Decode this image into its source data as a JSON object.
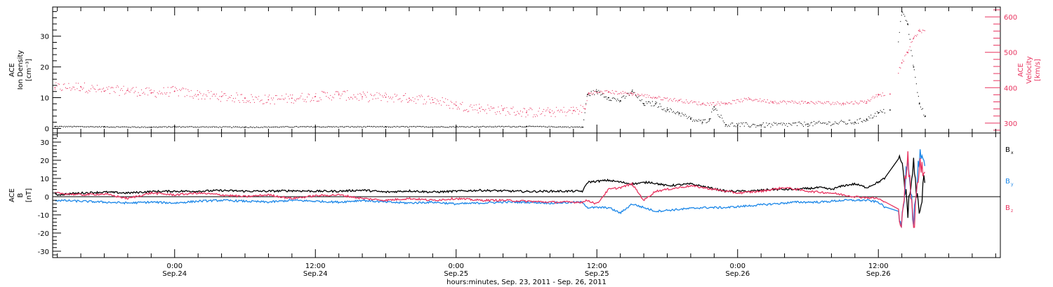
{
  "colors": {
    "black": "#000000",
    "pink": "#e8335f",
    "blue": "#1a86e8"
  },
  "x_axis": {
    "title": "hours:minutes, Sep. 23, 2011 - Sep. 26, 2011",
    "ticks": [
      {
        "hour": 24,
        "time": "0:00",
        "date": "Sep.24"
      },
      {
        "hour": 36,
        "time": "12:00",
        "date": "Sep.24"
      },
      {
        "hour": 48,
        "time": "0:00",
        "date": "Sep.25"
      },
      {
        "hour": 60,
        "time": "12:00",
        "date": "Sep.25"
      },
      {
        "hour": 72,
        "time": "0:00",
        "date": "Sep.26"
      },
      {
        "hour": 84,
        "time": "12:00",
        "date": "Sep.26"
      }
    ]
  },
  "chart_data": [
    {
      "type": "scatter",
      "panel": "top",
      "xlim": [
        13.6,
        94.4
      ],
      "ylabel_left": [
        "ACE",
        "Ion Density",
        "[cm⁻³]"
      ],
      "ylim_left": [
        -1.5,
        39.5
      ],
      "yticks_left": [
        0,
        10,
        20,
        30
      ],
      "ylabel_right": [
        "ACE",
        "Velocity",
        "[km/s]"
      ],
      "ylim_right": [
        272,
        628
      ],
      "yticks_right": [
        300,
        400,
        500,
        600
      ],
      "series": [
        {
          "axis": "left",
          "color": "#000000",
          "points": [
            [
              13.8,
              0.6
            ],
            [
              18,
              0.5
            ],
            [
              22,
              0.4
            ],
            [
              24,
              0.5
            ],
            [
              30,
              0.4
            ],
            [
              36,
              0.5
            ],
            [
              42,
              0.5
            ],
            [
              48,
              0.5
            ],
            [
              54,
              0.6
            ],
            [
              58.8,
              0.4
            ],
            [
              59.2,
              11
            ],
            [
              60,
              12
            ],
            [
              61,
              10
            ],
            [
              62,
              9
            ],
            [
              63,
              12
            ],
            [
              64,
              8
            ],
            [
              65,
              8
            ],
            [
              66,
              6
            ],
            [
              67,
              5
            ],
            [
              68,
              3
            ],
            [
              69,
              2
            ],
            [
              69.6,
              3
            ],
            [
              70.0,
              7
            ],
            [
              71,
              1.2
            ],
            [
              74,
              1.0
            ],
            [
              78,
              1.4
            ],
            [
              82,
              2
            ],
            [
              83,
              3
            ],
            [
              84,
              5
            ],
            [
              85,
              6
            ],
            [
              86,
              38
            ],
            [
              86.5,
              34
            ],
            [
              87,
              20
            ],
            [
              87.5,
              8
            ],
            [
              88,
              4
            ]
          ]
        },
        {
          "axis": "right",
          "color": "#e8335f",
          "points": [
            [
              13.8,
              400
            ],
            [
              16,
              403
            ],
            [
              18,
              390
            ],
            [
              20,
              393
            ],
            [
              22,
              385
            ],
            [
              24,
              390
            ],
            [
              26,
              380
            ],
            [
              28,
              375
            ],
            [
              30,
              370
            ],
            [
              32,
              366
            ],
            [
              34,
              370
            ],
            [
              36,
              375
            ],
            [
              38,
              380
            ],
            [
              40,
              374
            ],
            [
              42,
              373
            ],
            [
              44,
              370
            ],
            [
              46,
              366
            ],
            [
              48,
              350
            ],
            [
              50,
              342
            ],
            [
              52,
              336
            ],
            [
              54,
              330
            ],
            [
              56,
              330
            ],
            [
              58,
              335
            ],
            [
              59.0,
              340
            ],
            [
              59.3,
              385
            ],
            [
              61,
              388
            ],
            [
              63,
              383
            ],
            [
              65,
              372
            ],
            [
              67,
              364
            ],
            [
              69,
              354
            ],
            [
              71,
              356
            ],
            [
              73,
              368
            ],
            [
              75,
              360
            ],
            [
              78,
              358
            ],
            [
              81,
              356
            ],
            [
              83,
              360
            ],
            [
              84,
              381
            ],
            [
              85,
              382
            ],
            [
              86,
              470
            ],
            [
              86.5,
              500
            ],
            [
              87,
              540
            ],
            [
              87.5,
              560
            ]
          ]
        }
      ]
    },
    {
      "type": "line",
      "panel": "bottom",
      "xlim": [
        13.6,
        94.4
      ],
      "ylabel": [
        "ACE",
        "B",
        "[nT]"
      ],
      "ylim": [
        -33.5,
        35
      ],
      "yticks": [
        -30,
        -20,
        -10,
        0,
        10,
        20,
        30
      ],
      "zero_line": true,
      "series": [
        {
          "name": "Bx",
          "color": "#000000",
          "points": [
            [
              13.8,
              1
            ],
            [
              16,
              2
            ],
            [
              18,
              2.5
            ],
            [
              20,
              2
            ],
            [
              22,
              2.8
            ],
            [
              24,
              3
            ],
            [
              26,
              3
            ],
            [
              28,
              3.4
            ],
            [
              30,
              3
            ],
            [
              32,
              3
            ],
            [
              34,
              3.3
            ],
            [
              36,
              3
            ],
            [
              38,
              3
            ],
            [
              40,
              3.6
            ],
            [
              42,
              2.5
            ],
            [
              44,
              3.2
            ],
            [
              46,
              2.5
            ],
            [
              48,
              3
            ],
            [
              50,
              3.5
            ],
            [
              52,
              3.2
            ],
            [
              54,
              2.8
            ],
            [
              56,
              3
            ],
            [
              58.8,
              3
            ],
            [
              59.2,
              8
            ],
            [
              61,
              9
            ],
            [
              63,
              7
            ],
            [
              64.5,
              8
            ],
            [
              66,
              6
            ],
            [
              68,
              7
            ],
            [
              69.5,
              5
            ],
            [
              71,
              3
            ],
            [
              73,
              3
            ],
            [
              75,
              4
            ],
            [
              77,
              4
            ],
            [
              79,
              5
            ],
            [
              80,
              4
            ],
            [
              81,
              6
            ],
            [
              82,
              7
            ],
            [
              83,
              5
            ],
            [
              84,
              8
            ],
            [
              85,
              12
            ],
            [
              86,
              20
            ],
            [
              86.5,
              -8
            ],
            [
              87,
              18
            ],
            [
              87.5,
              -12
            ],
            [
              88,
              14
            ]
          ]
        },
        {
          "name": "By",
          "color": "#1a86e8",
          "points": [
            [
              13.8,
              -2
            ],
            [
              16,
              -2.5
            ],
            [
              18,
              -3
            ],
            [
              20,
              -3.5
            ],
            [
              22,
              -3
            ],
            [
              24,
              -3.5
            ],
            [
              26,
              -2.5
            ],
            [
              28,
              -2
            ],
            [
              30,
              -2.5
            ],
            [
              32,
              -3
            ],
            [
              34,
              -2
            ],
            [
              36,
              -2.5
            ],
            [
              38,
              -3
            ],
            [
              40,
              -2
            ],
            [
              42,
              -3
            ],
            [
              44,
              -3.5
            ],
            [
              46,
              -3
            ],
            [
              48,
              -4
            ],
            [
              50,
              -3.5
            ],
            [
              52,
              -3
            ],
            [
              54,
              -3
            ],
            [
              56,
              -3.5
            ],
            [
              58.8,
              -3
            ],
            [
              59.2,
              -6
            ],
            [
              61,
              -6
            ],
            [
              62,
              -9
            ],
            [
              63,
              -4
            ],
            [
              65,
              -8
            ],
            [
              67,
              -7
            ],
            [
              69,
              -6
            ],
            [
              71,
              -6
            ],
            [
              73,
              -5
            ],
            [
              75,
              -4
            ],
            [
              77,
              -3
            ],
            [
              79,
              -3
            ],
            [
              81,
              -2
            ],
            [
              83,
              -2
            ],
            [
              84,
              -3
            ],
            [
              85,
              -8
            ],
            [
              86,
              -15
            ],
            [
              86.5,
              25
            ],
            [
              87,
              -14
            ],
            [
              87.5,
              22
            ],
            [
              88,
              15
            ]
          ]
        },
        {
          "name": "Bz",
          "color": "#e8335f",
          "points": [
            [
              13.8,
              2
            ],
            [
              16,
              1
            ],
            [
              18,
              1.5
            ],
            [
              20,
              -1
            ],
            [
              22,
              2
            ],
            [
              24,
              1
            ],
            [
              26,
              2
            ],
            [
              28,
              1
            ],
            [
              30,
              0
            ],
            [
              32,
              1
            ],
            [
              34,
              -1
            ],
            [
              36,
              0.5
            ],
            [
              38,
              1
            ],
            [
              40,
              -1
            ],
            [
              42,
              -2
            ],
            [
              44,
              -1
            ],
            [
              46,
              -2
            ],
            [
              48,
              -1
            ],
            [
              50,
              -2
            ],
            [
              52,
              -2
            ],
            [
              54,
              -2.5
            ],
            [
              56,
              -3
            ],
            [
              58.8,
              -3
            ],
            [
              59.2,
              -2
            ],
            [
              60,
              -4
            ],
            [
              61,
              4
            ],
            [
              62,
              5
            ],
            [
              63,
              7
            ],
            [
              64,
              -2
            ],
            [
              65,
              3
            ],
            [
              66,
              4
            ],
            [
              68,
              6
            ],
            [
              70,
              4
            ],
            [
              72,
              2
            ],
            [
              74,
              3
            ],
            [
              76,
              5
            ],
            [
              78,
              3
            ],
            [
              80,
              2
            ],
            [
              82,
              0
            ],
            [
              84,
              -1
            ],
            [
              85,
              -5
            ],
            [
              86,
              -12
            ],
            [
              86.5,
              22
            ],
            [
              87,
              -18
            ],
            [
              87.5,
              18
            ],
            [
              88,
              12
            ]
          ]
        }
      ]
    }
  ],
  "legend": [
    {
      "symbol": "B",
      "sub": "x",
      "color": "#000000"
    },
    {
      "symbol": "B",
      "sub": "y",
      "color": "#1a86e8"
    },
    {
      "symbol": "B",
      "sub": "z",
      "color": "#e8335f"
    }
  ]
}
